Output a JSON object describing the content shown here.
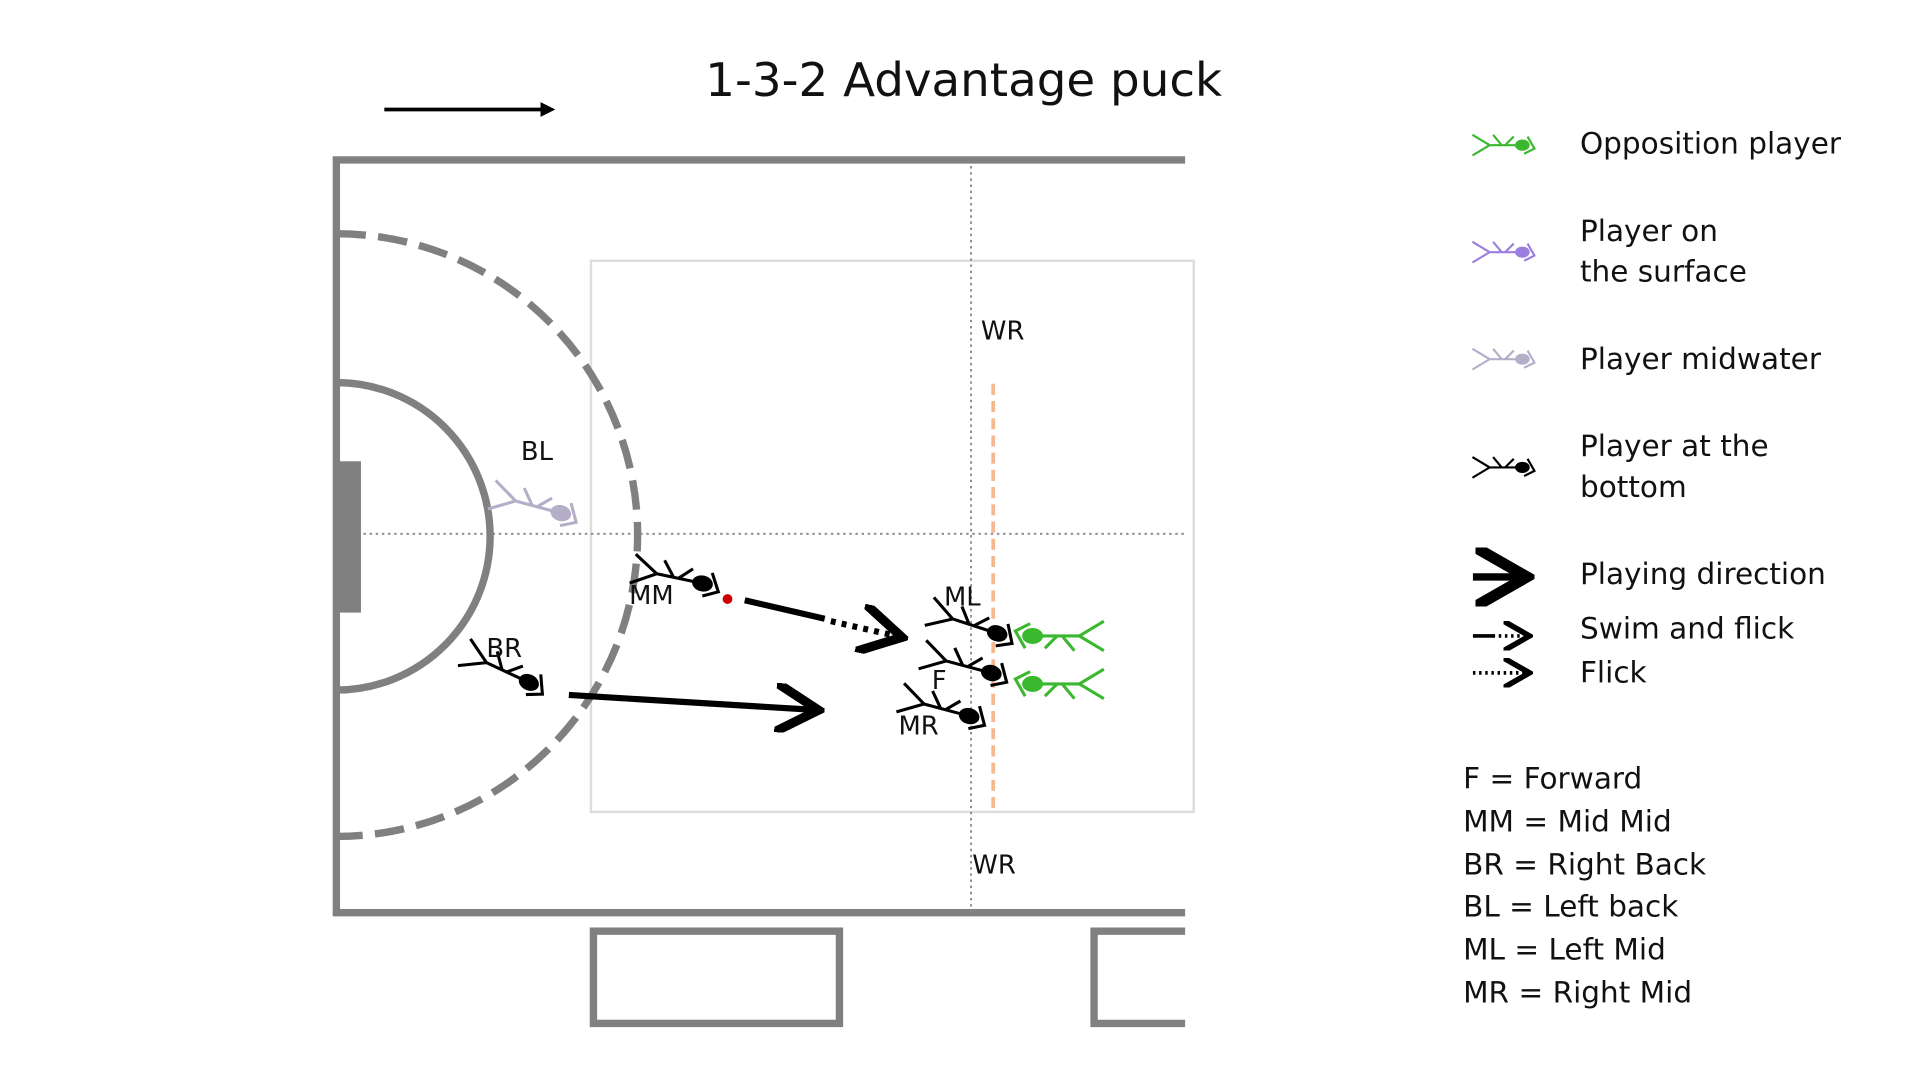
{
  "title": "1-3-2 Advantage puck",
  "field_labels": [
    "WR",
    "WR",
    "BL",
    "BR",
    "MM",
    "ML",
    "F",
    "MR"
  ],
  "legend": [
    "Opposition player",
    "Player on",
    "the surface",
    "Player midwater",
    "Player at the",
    "bottom",
    "Playing direction",
    "Swim and flick",
    "Flick"
  ],
  "abbreviations": [
    "F = Forward",
    "MM = Mid Mid",
    "BR = Right Back",
    "BL = Left back",
    "ML = Left Mid",
    "MR = Right Mid"
  ]
}
